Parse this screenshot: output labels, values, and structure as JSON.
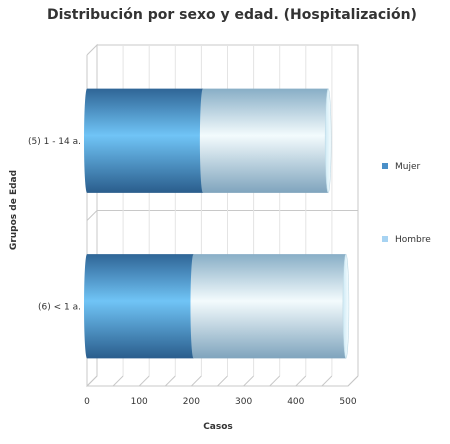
{
  "chart_data": {
    "type": "bar",
    "orientation": "horizontal",
    "stacked": true,
    "style": "3d-cylinder",
    "title": "Distribución por sexo y edad. (Hospitalización)",
    "xlabel": "Casos",
    "ylabel": "Grupos de Edad",
    "categories": [
      "(5) 1 - 14 a.",
      "(6) < 1 a."
    ],
    "series": [
      {
        "name": "Mujer",
        "color": "#4a8fc8",
        "values": [
          222,
          204
        ]
      },
      {
        "name": "Hombre",
        "color": "#a7d3f2",
        "values": [
          240,
          292
        ]
      }
    ],
    "xlim": [
      0,
      500
    ],
    "xticks": [
      0,
      100,
      200,
      300,
      400,
      500
    ],
    "grid": true,
    "legend_position": "right"
  }
}
